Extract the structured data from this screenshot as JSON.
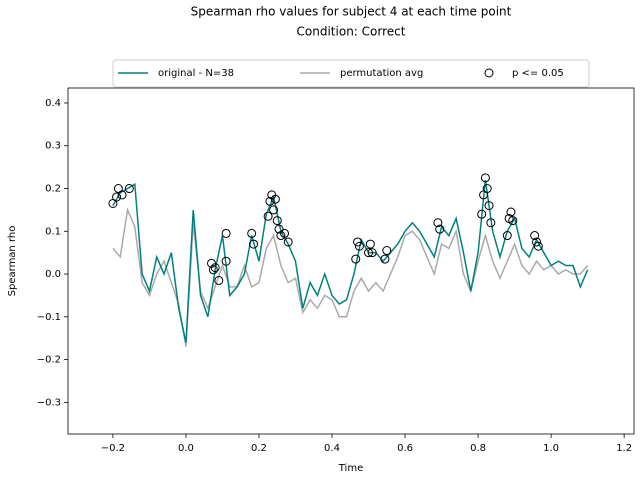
{
  "chart_data": {
    "type": "line",
    "title": "Spearman rho values for subject 4 at each time point",
    "subtitle": "Condition: Correct",
    "xlabel": "Time",
    "ylabel": "Spearman rho",
    "xlim": [
      -0.323,
      1.227
    ],
    "ylim": [
      -0.374,
      0.435
    ],
    "xticks": [
      {
        "value": -0.2,
        "label": "−0.2"
      },
      {
        "value": 0.0,
        "label": "0.0"
      },
      0.2,
      0.4,
      0.6,
      0.8,
      {
        "value": 1.0,
        "label": "1.0"
      },
      1.2
    ],
    "yticks": [
      {
        "value": -0.3,
        "label": "−0.3"
      },
      {
        "value": -0.2,
        "label": "−0.2"
      },
      {
        "value": -0.1,
        "label": "−0.1"
      },
      {
        "value": 0.0,
        "label": "0.0"
      },
      0.1,
      0.2,
      0.3,
      0.4
    ],
    "legend": "upper center",
    "x": [
      -0.2,
      -0.18,
      -0.16,
      -0.14,
      -0.12,
      -0.1,
      -0.08,
      -0.06,
      -0.04,
      -0.02,
      0.0,
      0.02,
      0.04,
      0.06,
      0.08,
      0.1,
      0.12,
      0.14,
      0.16,
      0.18,
      0.2,
      0.22,
      0.24,
      0.26,
      0.28,
      0.3,
      0.32,
      0.34,
      0.36,
      0.38,
      0.4,
      0.42,
      0.44,
      0.46,
      0.48,
      0.5,
      0.52,
      0.54,
      0.56,
      0.58,
      0.6,
      0.62,
      0.64,
      0.66,
      0.68,
      0.7,
      0.72,
      0.74,
      0.76,
      0.78,
      0.8,
      0.82,
      0.84,
      0.86,
      0.88,
      0.9,
      0.92,
      0.94,
      0.96,
      0.98,
      1.0,
      1.02,
      1.04,
      1.06,
      1.08,
      1.1
    ],
    "series": [
      {
        "name": "original - N=38",
        "color": "#008080",
        "style": "line",
        "values": [
          0.16,
          0.19,
          0.2,
          0.21,
          0.0,
          -0.04,
          0.04,
          0.0,
          0.05,
          -0.08,
          -0.16,
          0.15,
          -0.05,
          -0.1,
          0.01,
          0.09,
          -0.05,
          -0.03,
          0.0,
          0.09,
          0.03,
          0.14,
          0.18,
          0.1,
          0.07,
          0.03,
          -0.08,
          -0.02,
          -0.05,
          0.0,
          -0.05,
          -0.07,
          -0.06,
          0.0,
          0.08,
          0.05,
          0.05,
          0.03,
          0.05,
          0.07,
          0.1,
          0.12,
          0.1,
          0.07,
          0.04,
          0.11,
          0.09,
          0.13,
          0.05,
          -0.04,
          0.05,
          0.22,
          0.1,
          0.04,
          0.1,
          0.13,
          0.06,
          0.04,
          0.08,
          0.05,
          0.02,
          0.03,
          0.02,
          0.02,
          -0.03,
          0.01
        ]
      },
      {
        "name": "permutation avg",
        "color": "#aaaaaa",
        "style": "line",
        "values": [
          0.06,
          0.04,
          0.15,
          0.11,
          -0.02,
          -0.05,
          0.0,
          0.03,
          -0.02,
          -0.07,
          -0.17,
          0.12,
          -0.04,
          -0.08,
          -0.03,
          0.02,
          -0.03,
          -0.03,
          0.02,
          -0.03,
          -0.02,
          0.06,
          0.09,
          0.02,
          -0.02,
          -0.01,
          -0.09,
          -0.06,
          -0.08,
          -0.05,
          -0.06,
          -0.1,
          -0.1,
          -0.04,
          -0.01,
          -0.04,
          -0.02,
          -0.04,
          0.0,
          0.04,
          0.09,
          0.1,
          0.08,
          0.04,
          0.0,
          0.07,
          0.06,
          0.1,
          0.0,
          -0.04,
          0.03,
          0.09,
          0.03,
          -0.01,
          0.03,
          0.07,
          0.02,
          0.0,
          0.03,
          0.01,
          0.02,
          0.0,
          0.01,
          0.0,
          0.0,
          0.02
        ]
      },
      {
        "name": "p <= 0.05",
        "color": "#000000",
        "style": "scatter",
        "x": [
          -0.2,
          -0.19,
          -0.185,
          -0.175,
          -0.155,
          0.07,
          0.075,
          0.08,
          0.09,
          0.11,
          0.11,
          0.18,
          0.185,
          0.225,
          0.23,
          0.235,
          0.24,
          0.245,
          0.25,
          0.255,
          0.26,
          0.27,
          0.28,
          0.465,
          0.47,
          0.475,
          0.5,
          0.505,
          0.51,
          0.545,
          0.55,
          0.69,
          0.695,
          0.81,
          0.815,
          0.82,
          0.825,
          0.83,
          0.835,
          0.88,
          0.885,
          0.89,
          0.895,
          0.955,
          0.96,
          0.965
        ],
        "values": [
          0.165,
          0.18,
          0.2,
          0.185,
          0.2,
          0.025,
          0.01,
          0.015,
          -0.015,
          0.095,
          0.03,
          0.095,
          0.07,
          0.135,
          0.17,
          0.185,
          0.15,
          0.175,
          0.125,
          0.105,
          0.09,
          0.095,
          0.075,
          0.035,
          0.075,
          0.065,
          0.05,
          0.07,
          0.05,
          0.035,
          0.055,
          0.12,
          0.105,
          0.14,
          0.185,
          0.225,
          0.2,
          0.16,
          0.12,
          0.09,
          0.13,
          0.145,
          0.125,
          0.09,
          0.075,
          0.065
        ]
      }
    ]
  }
}
